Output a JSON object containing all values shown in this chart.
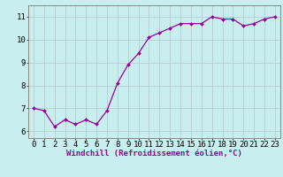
{
  "x": [
    0,
    1,
    2,
    3,
    4,
    5,
    6,
    7,
    8,
    9,
    10,
    11,
    12,
    13,
    14,
    15,
    16,
    17,
    18,
    19,
    20,
    21,
    22,
    23
  ],
  "y": [
    7.0,
    6.9,
    6.2,
    6.5,
    6.3,
    6.5,
    6.3,
    6.9,
    8.1,
    8.9,
    9.4,
    10.1,
    10.3,
    10.5,
    10.7,
    10.7,
    10.7,
    11.0,
    10.9,
    10.9,
    10.6,
    10.7,
    10.9,
    11.0
  ],
  "line_color": "#990099",
  "marker_color": "#990099",
  "background_color": "#c8eef0",
  "grid_color": "#b0c8cc",
  "xlabel": "Windchill (Refroidissement éolien,°C)",
  "xlabel_color": "#990099",
  "xlabel_fontsize": 6.5,
  "xtick_labels": [
    "0",
    "1",
    "2",
    "3",
    "4",
    "5",
    "6",
    "7",
    "8",
    "9",
    "10",
    "11",
    "12",
    "13",
    "14",
    "15",
    "16",
    "17",
    "18",
    "19",
    "20",
    "21",
    "22",
    "23"
  ],
  "ytick_labels": [
    "6",
    "7",
    "8",
    "9",
    "10",
    "11"
  ],
  "ylim": [
    5.7,
    11.5
  ],
  "xlim": [
    -0.5,
    23.5
  ],
  "tick_fontsize": 6.5,
  "tick_color": "#000000",
  "spine_color": "#888888"
}
